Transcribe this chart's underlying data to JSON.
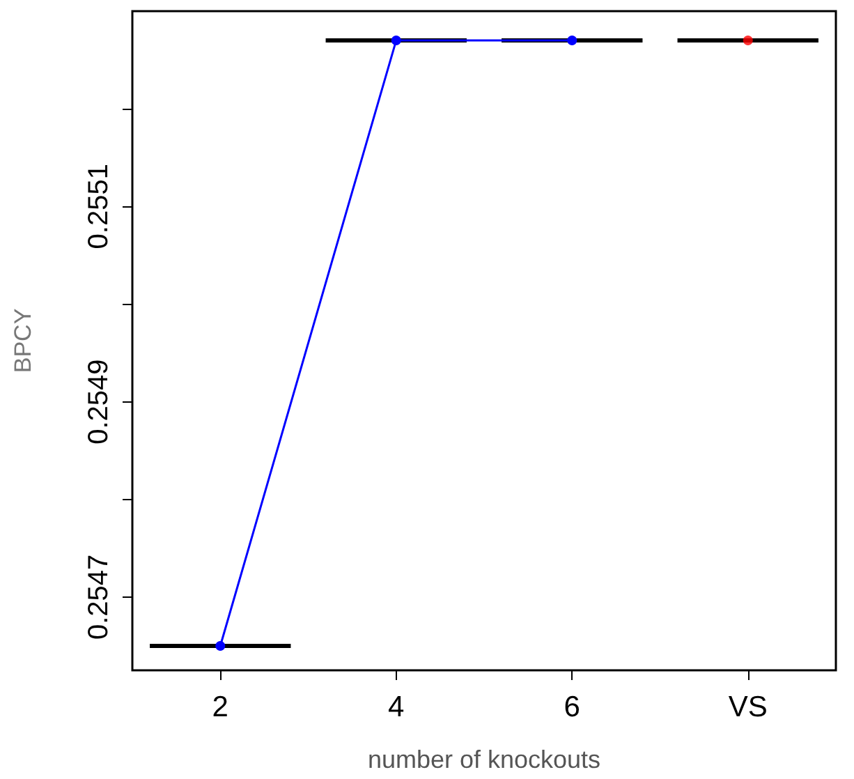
{
  "chart_data": {
    "type": "box",
    "xlabel": "number of knockouts",
    "ylabel": "BPCY",
    "categories": [
      "2",
      "4",
      "6",
      "VS"
    ],
    "boxes": [
      {
        "low": 0.25465,
        "q1": 0.25465,
        "median": 0.25465,
        "q3": 0.25465,
        "high": 0.25465
      },
      {
        "low": 0.25527,
        "q1": 0.25527,
        "median": 0.25527,
        "q3": 0.25527,
        "high": 0.25527
      },
      {
        "low": 0.25527,
        "q1": 0.25527,
        "median": 0.25527,
        "q3": 0.25527,
        "high": 0.25527
      },
      {
        "low": 0.25527,
        "q1": 0.25527,
        "median": 0.25527,
        "q3": 0.25527,
        "high": 0.25527
      }
    ],
    "series": [
      {
        "type": "line",
        "color": "#0000ff",
        "values": [
          0.25465,
          0.25527,
          0.25527,
          null
        ],
        "marker": "circle"
      },
      {
        "type": "scatter",
        "color": "#ff0000",
        "values": [
          null,
          null,
          null,
          0.25527
        ],
        "marker": "circle"
      }
    ],
    "ylim": [
      0.254625,
      0.2553
    ],
    "yticks": [
      {
        "value": 0.2547,
        "label": "0.2547"
      },
      {
        "value": 0.2548,
        "label": null
      },
      {
        "value": 0.2549,
        "label": "0.2549"
      },
      {
        "value": 0.255,
        "label": null
      },
      {
        "value": 0.2551,
        "label": "0.2551"
      },
      {
        "value": 0.2552,
        "label": null
      }
    ],
    "grid": false
  }
}
